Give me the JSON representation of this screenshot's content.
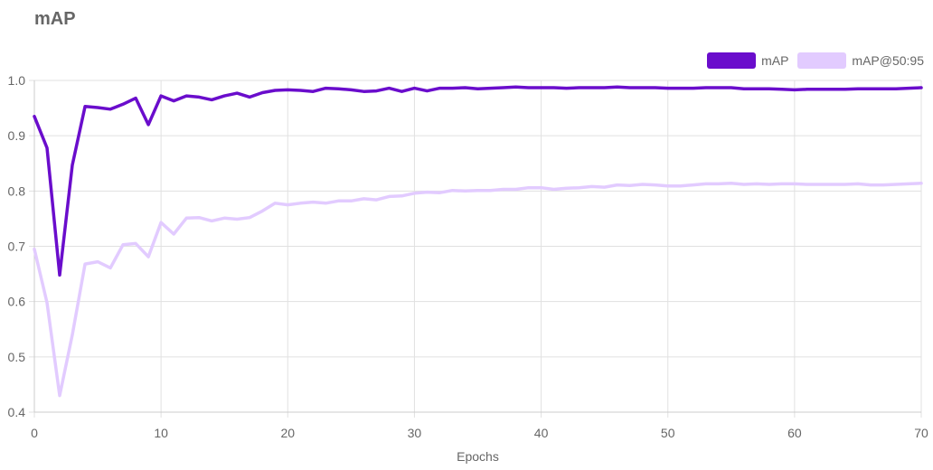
{
  "chart_data": {
    "type": "line",
    "title": "mAP",
    "xlabel": "Epochs",
    "ylabel": "",
    "xlim": [
      0,
      70
    ],
    "ylim": [
      0.4,
      1.0
    ],
    "xticks": [
      "0",
      "10",
      "20",
      "30",
      "40",
      "50",
      "60",
      "70"
    ],
    "yticks": [
      "0.4",
      "0.5",
      "0.6",
      "0.7",
      "0.8",
      "0.9",
      "1.0"
    ],
    "grid": true,
    "legend_position": "top-right",
    "series": [
      {
        "name": "mAP",
        "color": "#6a0dcc",
        "values": [
          0.935,
          0.878,
          0.648,
          0.847,
          0.953,
          0.951,
          0.948,
          0.957,
          0.968,
          0.92,
          0.972,
          0.963,
          0.972,
          0.97,
          0.965,
          0.972,
          0.977,
          0.97,
          0.978,
          0.982,
          0.983,
          0.982,
          0.98,
          0.986,
          0.985,
          0.983,
          0.98,
          0.981,
          0.986,
          0.98,
          0.986,
          0.981,
          0.986,
          0.986,
          0.987,
          0.985,
          0.986,
          0.987,
          0.988,
          0.987,
          0.987,
          0.987,
          0.986,
          0.987,
          0.987,
          0.987,
          0.988,
          0.987,
          0.987,
          0.987,
          0.986,
          0.986,
          0.986,
          0.987,
          0.987,
          0.987,
          0.985,
          0.985,
          0.985,
          0.984,
          0.983,
          0.984,
          0.984,
          0.984,
          0.984,
          0.985,
          0.985,
          0.985,
          0.985,
          0.986,
          0.987
        ]
      },
      {
        "name": "mAP@50:95",
        "color": "#e2cbff",
        "values": [
          0.695,
          0.598,
          0.43,
          0.54,
          0.668,
          0.672,
          0.661,
          0.703,
          0.705,
          0.681,
          0.743,
          0.722,
          0.751,
          0.752,
          0.746,
          0.751,
          0.749,
          0.752,
          0.764,
          0.778,
          0.775,
          0.778,
          0.78,
          0.778,
          0.782,
          0.782,
          0.786,
          0.784,
          0.79,
          0.791,
          0.796,
          0.798,
          0.797,
          0.801,
          0.8,
          0.801,
          0.801,
          0.803,
          0.803,
          0.806,
          0.806,
          0.803,
          0.805,
          0.806,
          0.808,
          0.807,
          0.811,
          0.81,
          0.812,
          0.811,
          0.809,
          0.809,
          0.811,
          0.813,
          0.813,
          0.814,
          0.812,
          0.813,
          0.812,
          0.813,
          0.813,
          0.812,
          0.812,
          0.812,
          0.812,
          0.813,
          0.811,
          0.811,
          0.812,
          0.813,
          0.814
        ]
      }
    ]
  }
}
